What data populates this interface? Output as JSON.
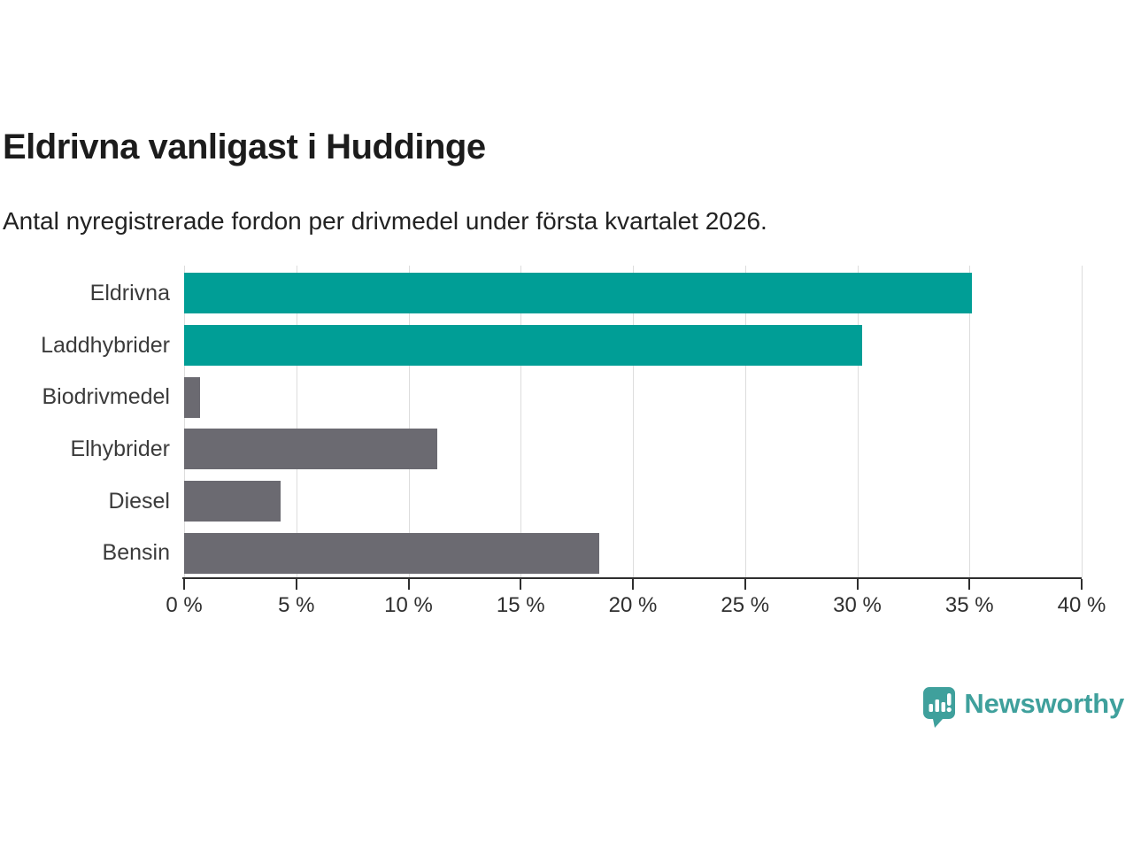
{
  "chart_data": {
    "type": "bar",
    "orientation": "horizontal",
    "title": "Eldrivna vanligast i Huddinge",
    "subtitle": "Antal nyregistrerade fordon per drivmedel under första kvartalet 2026.",
    "categories": [
      "Eldrivna",
      "Laddhybrider",
      "Biodrivmedel",
      "Elhybrider",
      "Diesel",
      "Bensin"
    ],
    "values": [
      35.1,
      30.2,
      0.7,
      11.3,
      4.3,
      18.5
    ],
    "unit": "%",
    "xlim": [
      0,
      40
    ],
    "x_ticks": [
      0,
      5,
      10,
      15,
      20,
      25,
      30,
      35,
      40
    ],
    "x_tick_suffix": " %",
    "grid": true,
    "legend": "none",
    "highlight_color": "#009e96",
    "default_color": "#6b6a71",
    "bar_colors": [
      "#009e96",
      "#009e96",
      "#6b6a71",
      "#6b6a71",
      "#6b6a71",
      "#6b6a71"
    ]
  },
  "branding": {
    "logo_text": "Newsworthy",
    "logo_color": "#3fa09c",
    "logo_icon": "speech-bubble-bar-chart-exclamation"
  }
}
